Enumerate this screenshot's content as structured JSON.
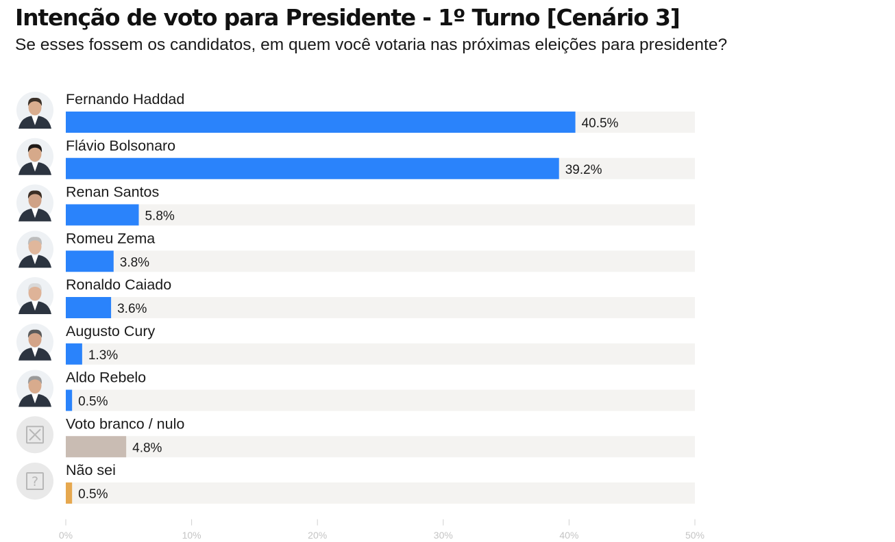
{
  "chart_data": {
    "type": "bar",
    "orientation": "horizontal",
    "title": "Intenção de voto para Presidente - 1º Turno [Cenário 3]",
    "subtitle": "Se esses fossem os candidatos, em quem você votaria nas próximas eleições para presidente?",
    "xlim": [
      0,
      50
    ],
    "ticks": [
      0,
      10,
      20,
      30,
      40,
      50
    ],
    "tick_labels": [
      "0%",
      "10%",
      "20%",
      "30%",
      "40%",
      "50%"
    ],
    "grid": false,
    "legend": "none",
    "categories": [
      "Fernando Haddad",
      "Flávio Bolsonaro",
      "Renan Santos",
      "Romeu Zema",
      "Ronaldo Caiado",
      "Augusto Cury",
      "Aldo Rebelo",
      "Voto branco / nulo",
      "Não sei"
    ],
    "values": [
      40.5,
      39.2,
      5.8,
      3.8,
      3.6,
      1.3,
      0.5,
      4.8,
      0.5
    ],
    "value_labels": [
      "40.5%",
      "39.2%",
      "5.8%",
      "3.8%",
      "3.6%",
      "1.3%",
      "0.5%",
      "4.8%",
      "0.5%"
    ],
    "bar_colors": [
      "#2a83fb",
      "#2a83fb",
      "#2a83fb",
      "#2a83fb",
      "#2a83fb",
      "#2a83fb",
      "#2a83fb",
      "#c9bcb3",
      "#e6a84f"
    ],
    "icons": [
      "candidate-photo-haddad",
      "candidate-photo-flavio-bolsonaro",
      "candidate-photo-renan-santos",
      "candidate-photo-zema",
      "candidate-photo-caiado",
      "candidate-photo-cury",
      "candidate-photo-rebelo",
      "blank-vote-x-icon",
      "question-mark-icon"
    ],
    "track_color": "#f4f3f1"
  }
}
